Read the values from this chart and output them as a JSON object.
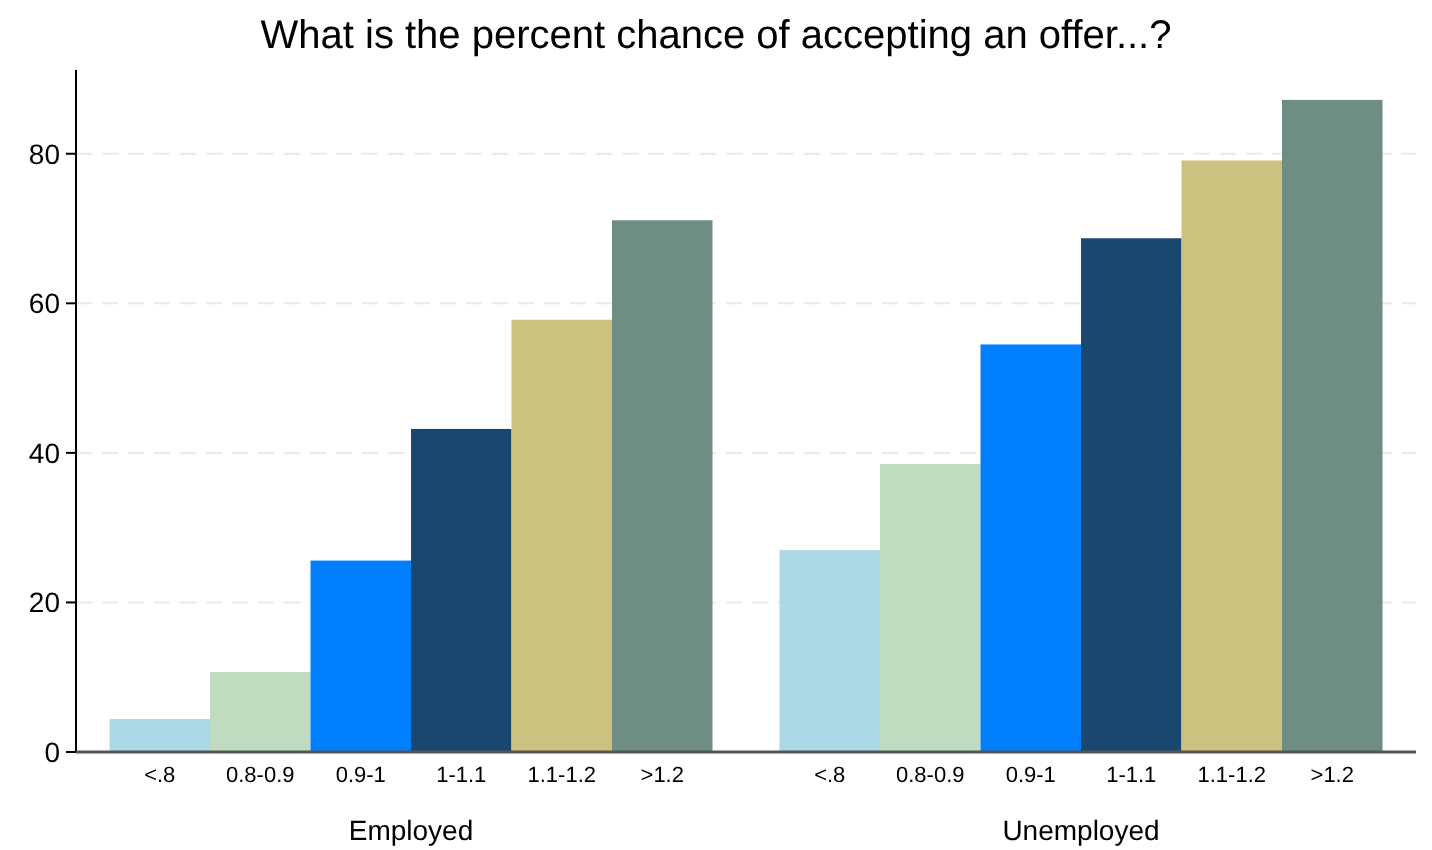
{
  "chart_data": {
    "type": "bar",
    "title": "What is the percent chance of accepting an offer...?",
    "categories": [
      "Employed",
      "Unemployed"
    ],
    "series": [
      {
        "name": "<.8",
        "color": "#add8e6",
        "values": [
          4.4,
          27.0
        ]
      },
      {
        "name": "0.8-0.9",
        "color": "#c0dcc0",
        "values": [
          10.7,
          38.5
        ]
      },
      {
        "name": "0.9-1",
        "color": "#0080ff",
        "values": [
          25.6,
          54.5
        ]
      },
      {
        "name": "1-1.1",
        "color": "#1a476f",
        "values": [
          43.2,
          68.7
        ]
      },
      {
        "name": "1.1-1.2",
        "color": "#cac27e",
        "values": [
          57.8,
          79.1
        ]
      },
      {
        "name": ">1.2",
        "color": "#6e8e84",
        "values": [
          71.1,
          87.2
        ]
      }
    ],
    "ylim": [
      0,
      91.2
    ],
    "yticks": [
      0,
      20,
      40,
      60,
      80
    ],
    "grid": "y"
  }
}
